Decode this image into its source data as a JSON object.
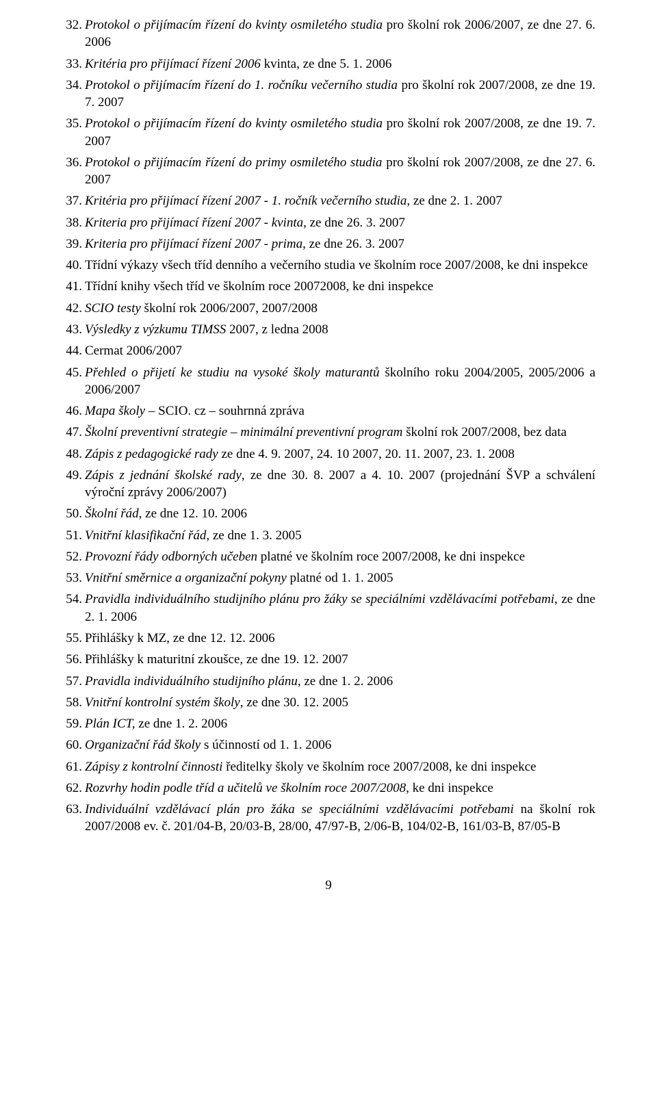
{
  "page_number": "9",
  "typography": {
    "font_family": "Times New Roman",
    "body_fontsize_pt": 14,
    "line_height": 1.33,
    "text_color": "#000000",
    "background_color": "#ffffff",
    "alignment": "justify"
  },
  "list": {
    "start_number": 32,
    "items": [
      {
        "n": "32.",
        "html": "<i>Protokol o přijímacím řízení do kvinty osmiletého studia</i> pro školní rok 2006/2007, ze dne 27. 6. 2006"
      },
      {
        "n": "33.",
        "html": "<i>Kritéria pro přijímací řízení 2006</i> kvinta, ze dne 5. 1. 2006"
      },
      {
        "n": "34.",
        "html": "<i>Protokol o přijímacím řízení do 1. ročníku večerního studia</i> pro školní rok 2007/2008, ze dne 19. 7. 2007"
      },
      {
        "n": "35.",
        "html": "<i>Protokol o přijímacím řízení do kvinty osmiletého studia</i> pro školní rok 2007/2008, ze dne 19. 7. 2007"
      },
      {
        "n": "36.",
        "html": "<i>Protokol o přijímacím řízení do primy osmiletého studia</i> pro školní rok 2007/2008, ze dne 27. 6. 2007"
      },
      {
        "n": "37.",
        "html": "<i>Kritéria pro přijímací řízení 2007 - 1. ročník večerního studia</i>, ze dne 2. 1. 2007"
      },
      {
        "n": "38.",
        "html": "<i>Kriteria pro přijímací řízení 2007 - kvinta</i>, ze dne 26. 3. 2007"
      },
      {
        "n": "39.",
        "html": "<i>Kriteria pro přijímací řízení 2007 - prima</i>, ze dne 26. 3. 2007"
      },
      {
        "n": "40.",
        "html": "Třídní výkazy všech tříd denního a večerního studia ve školním roce 2007/2008, ke dni inspekce"
      },
      {
        "n": "41.",
        "html": "Třídní knihy všech tříd ve školním roce 20072008, ke dni inspekce"
      },
      {
        "n": "42.",
        "html": "<i>SCIO testy</i> školní rok 2006/2007, 2007/2008"
      },
      {
        "n": "43.",
        "html": "<i>Výsledky z výzkumu TIMSS</i> 2007, z ledna 2008"
      },
      {
        "n": "44.",
        "html": "Cermat 2006/2007"
      },
      {
        "n": "45.",
        "html": "<i>Přehled o přijetí ke studiu na vysoké školy maturantů</i> školního roku 2004/2005, 2005/2006 a 2006/2007"
      },
      {
        "n": "46.",
        "html": "<i>Mapa školy</i> – SCIO. cz – souhrnná zpráva"
      },
      {
        "n": "47.",
        "html": "<i>Školní preventivní strategie – minimální preventivní program</i> školní rok 2007/2008, bez data"
      },
      {
        "n": "48.",
        "html": "<i>Zápis z pedagogické rady</i> ze dne 4. 9. 2007, 24. 10 2007, 20. 11. 2007, 23. 1. 2008"
      },
      {
        "n": "49.",
        "html": "<i>Zápis z jednání školské rady</i>, ze dne 30. 8. 2007 a 4. 10. 2007 (projednání ŠVP a schválení výroční zprávy 2006/2007)"
      },
      {
        "n": "50.",
        "html": "<i>Školní řád</i>, ze dne 12. 10. 2006"
      },
      {
        "n": "51.",
        "html": "<i>Vnitřní klasifikační řád</i>, ze dne 1. 3. 2005"
      },
      {
        "n": "52.",
        "html": "<i>Provozní řády odborných učeben</i> platné ve školním roce 2007/2008, ke dni inspekce"
      },
      {
        "n": "53.",
        "html": "<i>Vnitřní směrnice a organizační pokyny</i> platné od 1. 1. 2005"
      },
      {
        "n": "54.",
        "html": "<i>Pravidla individuálního studijního plánu pro žáky se speciálními vzdělávacími potřebami</i>, ze dne 2. 1. 2006"
      },
      {
        "n": "55.",
        "html": "Přihlášky k MZ, ze dne 12. 12. 2006"
      },
      {
        "n": "56.",
        "html": "Přihlášky k maturitní zkoušce, ze dne 19. 12. 2007"
      },
      {
        "n": "57.",
        "html": "<i>Pravidla individuálního studijního plánu</i>, ze dne 1. 2. 2006"
      },
      {
        "n": "58.",
        "html": "<i>Vnitřní kontrolní systém školy</i>, ze dne 30. 12. 2005"
      },
      {
        "n": "59.",
        "html": "<i>Plán ICT,</i> ze dne 1. 2. 2006"
      },
      {
        "n": "60.",
        "html": "<i>Organizační řád školy</i> s účinností od 1. 1. 2006"
      },
      {
        "n": "61.",
        "html": "<i>Zápisy z kontrolní činnosti</i> ředitelky školy ve školním roce 2007/2008, ke dni inspekce"
      },
      {
        "n": "62.",
        "html": "<i>Rozvrhy hodin podle tříd a učitelů ve školním roce 2007/2008</i>, ke dni inspekce"
      },
      {
        "n": "63.",
        "html": "<i>Individuální vzdělávací plán pro žáka se speciálními vzdělávacími potřebami</i> na školní rok 2007/2008 ev. č. 201/04-B, 20/03-B, 28/00, 47/97-B, 2/06-B, 104/02-B, 161/03-B, 87/05-B"
      }
    ]
  }
}
